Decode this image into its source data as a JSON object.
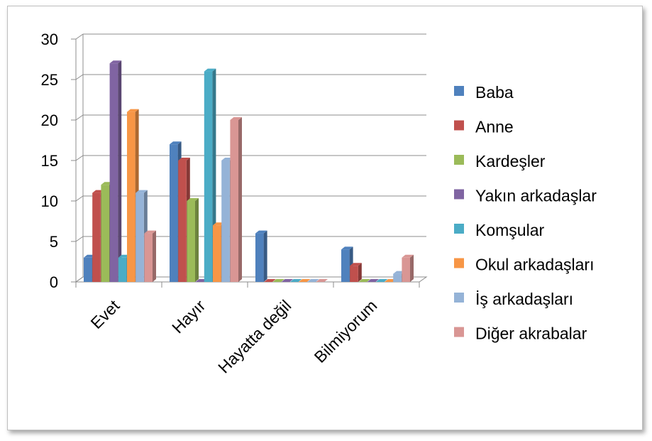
{
  "chart_data": {
    "type": "bar",
    "categories": [
      "Evet",
      "Hayır",
      "Hayatta değil",
      "Bilmiyorum"
    ],
    "ylim": [
      0,
      30
    ],
    "yticks": [
      0,
      5,
      10,
      15,
      20,
      25,
      30
    ],
    "grid": true,
    "legend_position": "right",
    "series": [
      {
        "name": "Baba",
        "color": "#4f81bd",
        "values": [
          3,
          17,
          6,
          4
        ]
      },
      {
        "name": "Anne",
        "color": "#c0504d",
        "values": [
          11,
          15,
          0,
          2
        ]
      },
      {
        "name": "Kardeşler",
        "color": "#9bbb59",
        "values": [
          12,
          10,
          0,
          0
        ]
      },
      {
        "name": "Yakın arkadaşlar",
        "color": "#8064a2",
        "values": [
          27,
          0,
          0,
          0
        ]
      },
      {
        "name": "Komşular",
        "color": "#4bacc6",
        "values": [
          3,
          26,
          0,
          0
        ]
      },
      {
        "name": "Okul arkadaşları",
        "color": "#f79646",
        "values": [
          21,
          7,
          0,
          0
        ]
      },
      {
        "name": "İş arkadaşları",
        "color": "#95b3d7",
        "values": [
          11,
          15,
          0,
          1
        ]
      },
      {
        "name": "Diğer akrabalar",
        "color": "#d99694",
        "values": [
          6,
          20,
          0,
          3
        ]
      }
    ]
  }
}
